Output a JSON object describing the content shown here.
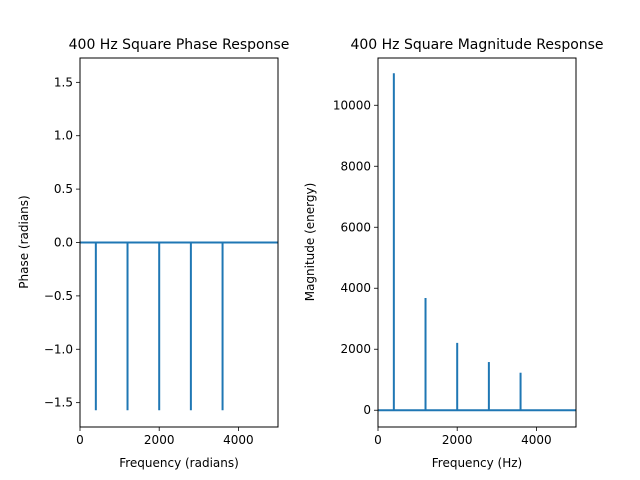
{
  "chart_data": [
    {
      "type": "line",
      "title": "400 Hz Square Phase Response",
      "xlabel": "Frequency (radians)",
      "ylabel": "Phase (radians)",
      "xlim": [
        0,
        5000
      ],
      "ylim": [
        -1.728,
        1.728
      ],
      "xticks": [
        0,
        2000,
        4000
      ],
      "xtick_labels": [
        "0",
        "2000",
        "4000"
      ],
      "yticks": [
        -1.5,
        -1.0,
        -0.5,
        0.0,
        0.5,
        1.0,
        1.5
      ],
      "ytick_labels": [
        "−1.5",
        "−1.0",
        "−0.5",
        "0.0",
        "0.5",
        "1.0",
        "1.5"
      ],
      "grid": false,
      "color": "#1f77b4",
      "baseline": 0,
      "spikes": {
        "x": [
          400,
          1200,
          2000,
          2800,
          3600
        ],
        "y": [
          -1.5708,
          -1.5708,
          -1.5708,
          -1.5708,
          -1.5708
        ]
      }
    },
    {
      "type": "line",
      "title": "400 Hz Square Magnitude Response",
      "xlabel": "Frequency (Hz)",
      "ylabel": "Magnitude (energy)",
      "xlim": [
        0,
        5000
      ],
      "ylim": [
        -550,
        11550
      ],
      "xticks": [
        0,
        2000,
        4000
      ],
      "xtick_labels": [
        "0",
        "2000",
        "4000"
      ],
      "yticks": [
        0,
        2000,
        4000,
        6000,
        8000,
        10000
      ],
      "ytick_labels": [
        "0",
        "2000",
        "4000",
        "6000",
        "8000",
        "10000"
      ],
      "grid": false,
      "color": "#1f77b4",
      "baseline": 0,
      "spikes": {
        "x": [
          400,
          1200,
          2000,
          2800,
          3600
        ],
        "y": [
          11050,
          3680,
          2210,
          1580,
          1230
        ]
      }
    }
  ]
}
